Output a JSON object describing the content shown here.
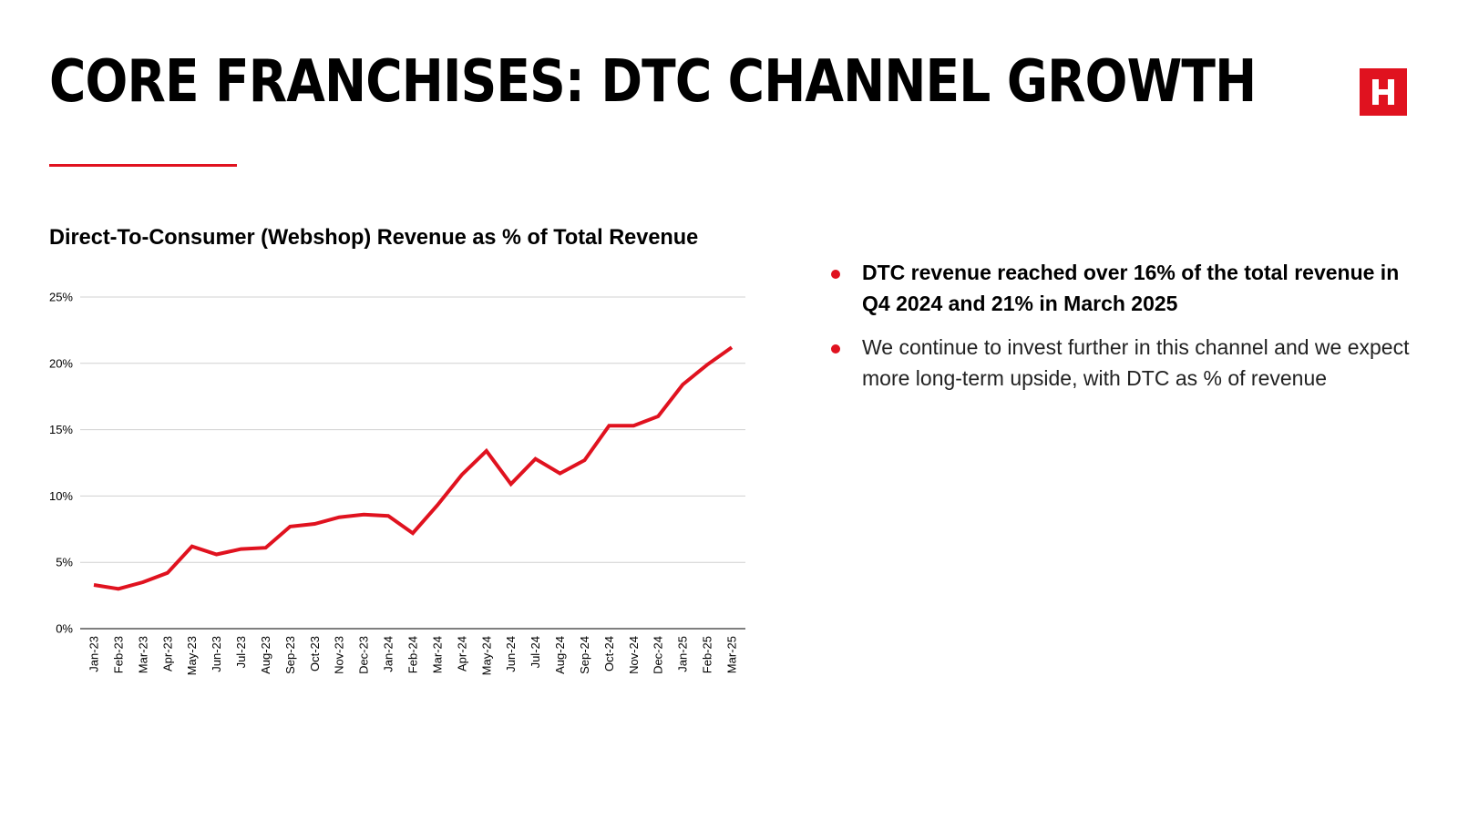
{
  "slide": {
    "title": "CORE FRANCHISES: DTC CHANNEL GROWTH",
    "accent_color": "#e0121f",
    "logo_letter": "H"
  },
  "bullets": [
    {
      "text": "DTC revenue reached over 16% of the total revenue in Q4 2024 and 21% in March 2025",
      "style": "bold"
    },
    {
      "text": "We continue to invest further in this channel and we expect more long-term upside, with DTC as % of revenue",
      "style": "light"
    }
  ],
  "chart_data": {
    "type": "line",
    "title": "Direct-To-Consumer (Webshop) Revenue as % of Total Revenue",
    "xlabel": "",
    "ylabel": "",
    "ylim": [
      0,
      25
    ],
    "yticks": [
      "0%",
      "5%",
      "10%",
      "15%",
      "20%",
      "25%"
    ],
    "grid": true,
    "legend": "none",
    "categories": [
      "Jan-23",
      "Feb-23",
      "Mar-23",
      "Apr-23",
      "May-23",
      "Jun-23",
      "Jul-23",
      "Aug-23",
      "Sep-23",
      "Oct-23",
      "Nov-23",
      "Dec-23",
      "Jan-24",
      "Feb-24",
      "Mar-24",
      "Apr-24",
      "May-24",
      "Jun-24",
      "Jul-24",
      "Aug-24",
      "Sep-24",
      "Oct-24",
      "Nov-24",
      "Dec-24",
      "Jan-25",
      "Feb-25",
      "Mar-25"
    ],
    "series": [
      {
        "color": "#e0121f",
        "values": [
          3.3,
          3.0,
          3.5,
          4.2,
          6.2,
          5.6,
          6.0,
          6.1,
          7.7,
          7.9,
          8.4,
          8.6,
          8.5,
          7.2,
          9.3,
          11.6,
          13.4,
          10.9,
          12.8,
          11.7,
          12.7,
          15.3,
          15.3,
          16.0,
          18.4,
          19.9,
          21.2
        ]
      }
    ]
  }
}
